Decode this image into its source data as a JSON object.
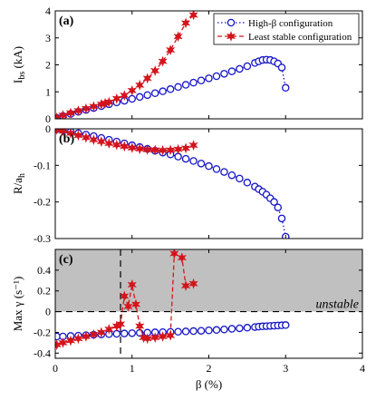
{
  "colors": {
    "high_beta": "#1515c8",
    "least_stable": "#d4141c",
    "unstable_fill": "#c0c0c0"
  },
  "chart_data": [
    {
      "panel": "(a)",
      "type": "line",
      "ylabel": "I_bs (kA)",
      "xlim": [
        0,
        4
      ],
      "ylim": [
        0,
        4
      ],
      "yticks": [
        0,
        1,
        2,
        3,
        4
      ],
      "xticks": [
        0,
        1,
        2,
        3,
        4
      ],
      "show_xticklabels": false,
      "legend": {
        "position": "top-right"
      },
      "series": [
        {
          "name": "High-β configuration",
          "key": "high_beta",
          "style": "dotted-circle",
          "x": [
            0.02,
            0.1,
            0.2,
            0.3,
            0.4,
            0.5,
            0.6,
            0.7,
            0.8,
            0.9,
            1.0,
            1.1,
            1.2,
            1.3,
            1.4,
            1.5,
            1.6,
            1.7,
            1.8,
            1.9,
            2.0,
            2.1,
            2.2,
            2.3,
            2.4,
            2.5,
            2.6,
            2.65,
            2.7,
            2.75,
            2.8,
            2.85,
            2.9,
            2.95,
            3.0
          ],
          "y": [
            0.03,
            0.1,
            0.18,
            0.26,
            0.33,
            0.4,
            0.47,
            0.54,
            0.61,
            0.67,
            0.74,
            0.81,
            0.88,
            0.95,
            1.02,
            1.1,
            1.18,
            1.26,
            1.34,
            1.42,
            1.5,
            1.58,
            1.67,
            1.76,
            1.85,
            1.95,
            2.07,
            2.13,
            2.18,
            2.19,
            2.18,
            2.13,
            2.05,
            1.9,
            1.15
          ]
        },
        {
          "name": "Least stable configuration",
          "key": "least_stable",
          "style": "dashed-star",
          "x": [
            0.02,
            0.1,
            0.2,
            0.3,
            0.4,
            0.5,
            0.6,
            0.65,
            0.7,
            0.8,
            0.9,
            1.0,
            1.1,
            1.2,
            1.3,
            1.4,
            1.5,
            1.6,
            1.7,
            1.8
          ],
          "y": [
            0.04,
            0.13,
            0.22,
            0.3,
            0.38,
            0.46,
            0.54,
            0.58,
            0.62,
            0.75,
            0.87,
            1.05,
            1.25,
            1.5,
            1.78,
            2.13,
            2.55,
            3.05,
            3.55,
            3.85
          ]
        }
      ]
    },
    {
      "panel": "(b)",
      "type": "line",
      "ylabel": "R/a_h",
      "xlim": [
        0,
        4
      ],
      "ylim": [
        -0.3,
        0
      ],
      "yticks": [
        0,
        -0.1,
        -0.2,
        -0.3
      ],
      "xticks": [
        0,
        1,
        2,
        3,
        4
      ],
      "show_xticklabels": false,
      "series": [
        {
          "name": "High-β configuration",
          "key": "high_beta",
          "style": "dotted-circle",
          "x": [
            0.02,
            0.1,
            0.2,
            0.3,
            0.4,
            0.5,
            0.6,
            0.7,
            0.8,
            0.9,
            1.0,
            1.1,
            1.2,
            1.3,
            1.4,
            1.5,
            1.6,
            1.7,
            1.8,
            1.9,
            2.0,
            2.1,
            2.2,
            2.3,
            2.4,
            2.5,
            2.6,
            2.65,
            2.7,
            2.75,
            2.8,
            2.85,
            2.9,
            2.95,
            3.0
          ],
          "y": [
            -0.001,
            -0.004,
            -0.008,
            -0.012,
            -0.016,
            -0.02,
            -0.025,
            -0.03,
            -0.035,
            -0.04,
            -0.045,
            -0.05,
            -0.055,
            -0.06,
            -0.065,
            -0.07,
            -0.076,
            -0.082,
            -0.088,
            -0.095,
            -0.102,
            -0.11,
            -0.118,
            -0.127,
            -0.136,
            -0.147,
            -0.158,
            -0.165,
            -0.172,
            -0.18,
            -0.19,
            -0.2,
            -0.215,
            -0.245,
            -0.295
          ]
        },
        {
          "name": "Least stable configuration",
          "key": "least_stable",
          "style": "dashed-star",
          "x": [
            0.02,
            0.1,
            0.2,
            0.3,
            0.4,
            0.5,
            0.6,
            0.7,
            0.8,
            0.9,
            1.0,
            1.1,
            1.2,
            1.3,
            1.4,
            1.5,
            1.6,
            1.7,
            1.8
          ],
          "y": [
            -0.002,
            -0.006,
            -0.012,
            -0.018,
            -0.024,
            -0.03,
            -0.035,
            -0.04,
            -0.044,
            -0.048,
            -0.052,
            -0.055,
            -0.057,
            -0.058,
            -0.059,
            -0.058,
            -0.056,
            -0.053,
            -0.045
          ]
        }
      ]
    },
    {
      "panel": "(c)",
      "type": "line",
      "ylabel": "Max γ (s⁻¹)",
      "xlabel": "β (%)",
      "xlim": [
        0,
        4
      ],
      "ylim": [
        -0.45,
        0.6
      ],
      "yticks": [
        0.4,
        0.2,
        0,
        -0.2,
        -0.4
      ],
      "xticks": [
        0,
        1,
        2,
        3,
        4
      ],
      "show_xticklabels": true,
      "unstable_region": {
        "ymin": 0,
        "label": "unstable"
      },
      "vline_x": 0.85,
      "series": [
        {
          "name": "High-β configuration",
          "key": "high_beta",
          "style": "dotted-circle",
          "x": [
            0.02,
            0.1,
            0.2,
            0.3,
            0.4,
            0.5,
            0.6,
            0.7,
            0.8,
            0.9,
            1.0,
            1.1,
            1.2,
            1.3,
            1.4,
            1.5,
            1.6,
            1.7,
            1.8,
            1.9,
            2.0,
            2.1,
            2.2,
            2.3,
            2.4,
            2.5,
            2.6,
            2.65,
            2.7,
            2.75,
            2.8,
            2.85,
            2.9,
            2.95,
            3.0
          ],
          "y": [
            -0.24,
            -0.24,
            -0.235,
            -0.232,
            -0.228,
            -0.224,
            -0.22,
            -0.217,
            -0.214,
            -0.211,
            -0.208,
            -0.205,
            -0.203,
            -0.2,
            -0.198,
            -0.196,
            -0.194,
            -0.191,
            -0.188,
            -0.185,
            -0.181,
            -0.177,
            -0.172,
            -0.166,
            -0.161,
            -0.155,
            -0.149,
            -0.145,
            -0.142,
            -0.14,
            -0.138,
            -0.136,
            -0.134,
            -0.132,
            -0.13
          ]
        },
        {
          "name": "Least stable configuration",
          "key": "least_stable",
          "style": "dashed-star",
          "x": [
            0.02,
            0.1,
            0.2,
            0.3,
            0.4,
            0.5,
            0.6,
            0.7,
            0.8,
            0.85,
            0.9,
            0.95,
            1.0,
            1.05,
            1.1,
            1.15,
            1.2,
            1.3,
            1.4,
            1.5,
            1.55,
            1.65,
            1.7,
            1.8
          ],
          "y": [
            -0.32,
            -0.3,
            -0.28,
            -0.26,
            -0.24,
            -0.22,
            -0.2,
            -0.17,
            -0.14,
            -0.12,
            0.15,
            0.05,
            0.26,
            0.07,
            -0.14,
            -0.25,
            -0.26,
            -0.25,
            -0.24,
            -0.23,
            0.56,
            0.52,
            0.25,
            0.27
          ]
        }
      ]
    }
  ]
}
